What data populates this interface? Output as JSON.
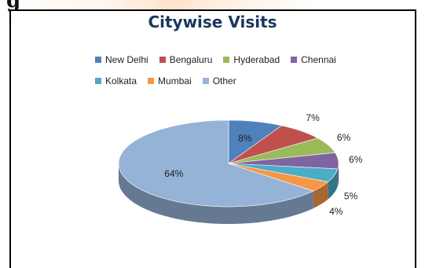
{
  "page": {
    "heading_fragment": "g"
  },
  "chart_data": {
    "type": "pie",
    "title": "Citywise Visits",
    "categories": [
      "New Delhi",
      "Bengaluru",
      "Hyderabad",
      "Chennai",
      "Kolkata",
      "Mumbai",
      "Other"
    ],
    "values": [
      8,
      7,
      6,
      6,
      5,
      4,
      64
    ],
    "labels": [
      "8%",
      "7%",
      "6%",
      "6%",
      "5%",
      "4%",
      "64%"
    ],
    "colors": [
      "#4f81bd",
      "#c0504d",
      "#9bbb59",
      "#8064a2",
      "#4bacc6",
      "#f79646",
      "#95b3d7"
    ],
    "legend_position": "top",
    "style": "3d"
  }
}
